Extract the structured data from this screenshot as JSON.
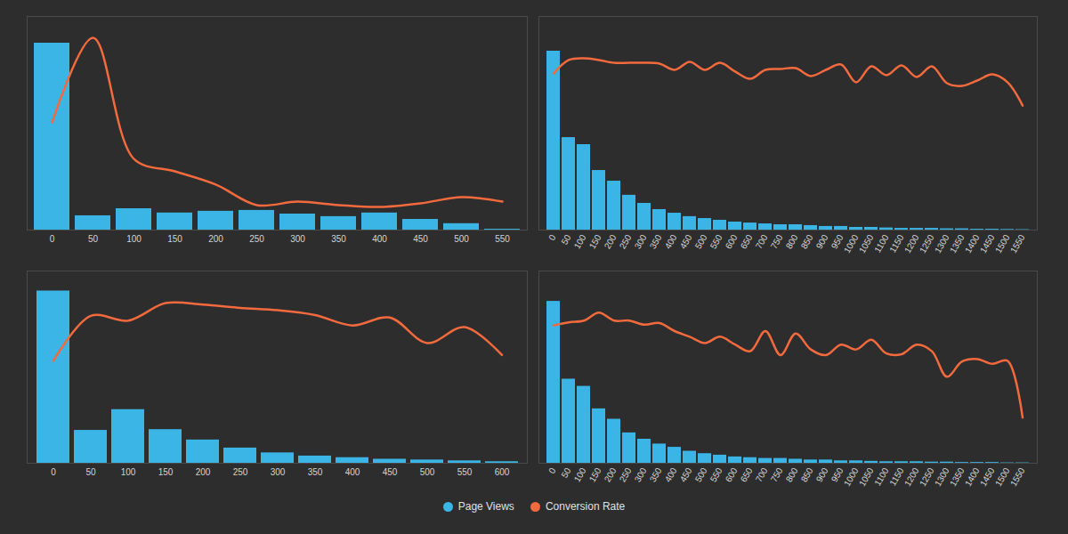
{
  "chart_data": [
    {
      "type": "bar",
      "tick_labels": "x",
      "legend": "bottom",
      "ylim": [
        0,
        100
      ],
      "categories": [
        0,
        50,
        100,
        150,
        200,
        250,
        300,
        350,
        400,
        450,
        500,
        550
      ],
      "series": [
        {
          "name": "Page Views",
          "type": "bar",
          "color": "#3ab5e6",
          "values": [
            87.5,
            6.7,
            10,
            8,
            8.8,
            9.2,
            7.5,
            6.3,
            8,
            5,
            3,
            0.4
          ]
        },
        {
          "name": "Conversion Rate",
          "type": "line",
          "color": "#f26a3d",
          "values": [
            50.4,
            90,
            33.3,
            27.5,
            21.3,
            11.7,
            13.3,
            11.7,
            10.8,
            12.5,
            15.4,
            13.3
          ]
        }
      ]
    },
    {
      "type": "bar",
      "tick_labels": "x",
      "legend": "bottom",
      "ylim": [
        0,
        100
      ],
      "categories": [
        0,
        50,
        100,
        150,
        200,
        250,
        300,
        350,
        400,
        450,
        500,
        550,
        600,
        650,
        700,
        750,
        800,
        850,
        900,
        950,
        1000,
        1050,
        1100,
        1150,
        1200,
        1250,
        1300,
        1350,
        1400,
        1450,
        1500,
        1550
      ],
      "series": [
        {
          "name": "Page Views",
          "type": "bar",
          "color": "#3ab5e6",
          "values": [
            83.75,
            43.3,
            40,
            27.9,
            22.9,
            16.3,
            12.5,
            9.6,
            7.9,
            6.3,
            5.4,
            4.6,
            3.75,
            3.3,
            2.9,
            2.5,
            2.5,
            2.1,
            1.7,
            1.7,
            1.25,
            1.25,
            1,
            0.8,
            0.8,
            0.8,
            0.6,
            0.6,
            0.4,
            0.4,
            0.3,
            0.2
          ]
        },
        {
          "name": "Conversion Rate",
          "type": "line",
          "color": "#f26a3d",
          "values": [
            73.3,
            79.6,
            80.4,
            79.6,
            78.3,
            78.3,
            78.3,
            77.9,
            75,
            78.8,
            75,
            78.3,
            74.2,
            70.8,
            75,
            75.4,
            75.8,
            72.1,
            75,
            77.5,
            69.2,
            76.7,
            72.5,
            77.1,
            71.7,
            76.7,
            68.75,
            67.5,
            70,
            72.9,
            69.2,
            58.3
          ]
        }
      ]
    },
    {
      "type": "bar",
      "tick_labels": "x",
      "legend": "bottom",
      "ylim": [
        0,
        100
      ],
      "categories": [
        0,
        50,
        100,
        150,
        200,
        250,
        300,
        350,
        400,
        450,
        500,
        550,
        600
      ],
      "series": [
        {
          "name": "Page Views",
          "type": "bar",
          "color": "#3ab5e6",
          "values": [
            89.6,
            17.1,
            27.9,
            17.5,
            12.1,
            7.9,
            5.4,
            3.75,
            2.9,
            2.1,
            1.7,
            1.25,
            0.8
          ]
        },
        {
          "name": "Conversion Rate",
          "type": "line",
          "color": "#f26a3d",
          "values": [
            53.3,
            76.7,
            74.2,
            83.3,
            82.5,
            80.8,
            79.6,
            77.1,
            71.7,
            75.8,
            62.5,
            70.8,
            56.3
          ]
        }
      ]
    },
    {
      "type": "bar",
      "tick_labels": "x",
      "legend": "bottom",
      "ylim": [
        0,
        100
      ],
      "categories": [
        0,
        50,
        100,
        150,
        200,
        250,
        300,
        350,
        400,
        450,
        500,
        550,
        600,
        650,
        700,
        750,
        800,
        850,
        900,
        950,
        1000,
        1050,
        1100,
        1150,
        1200,
        1250,
        1300,
        1350,
        1400,
        1450,
        1500,
        1550
      ],
      "series": [
        {
          "name": "Page Views",
          "type": "bar",
          "color": "#3ab5e6",
          "values": [
            84.2,
            43.75,
            40,
            28.3,
            22.9,
            15.8,
            12.5,
            10,
            8.3,
            6.25,
            5,
            4.2,
            3.3,
            2.9,
            2.5,
            2.5,
            2.1,
            1.7,
            1.7,
            1.25,
            1.25,
            1,
            0.8,
            0.8,
            0.8,
            0.6,
            0.6,
            0.4,
            0.4,
            0.4,
            0.2,
            0.2
          ]
        },
        {
          "name": "Conversion Rate",
          "type": "line",
          "color": "#f26a3d",
          "values": [
            71.7,
            73.3,
            74.2,
            78.3,
            74.2,
            74.2,
            72.1,
            72.9,
            68.75,
            65.8,
            62.5,
            65.8,
            61.7,
            58.3,
            68.75,
            56.25,
            67.5,
            59.2,
            56.25,
            61.7,
            59.2,
            64.2,
            57.1,
            56.7,
            61.7,
            58.3,
            45,
            52.9,
            54.2,
            51.7,
            53.3,
            23.75
          ]
        }
      ]
    }
  ]
}
